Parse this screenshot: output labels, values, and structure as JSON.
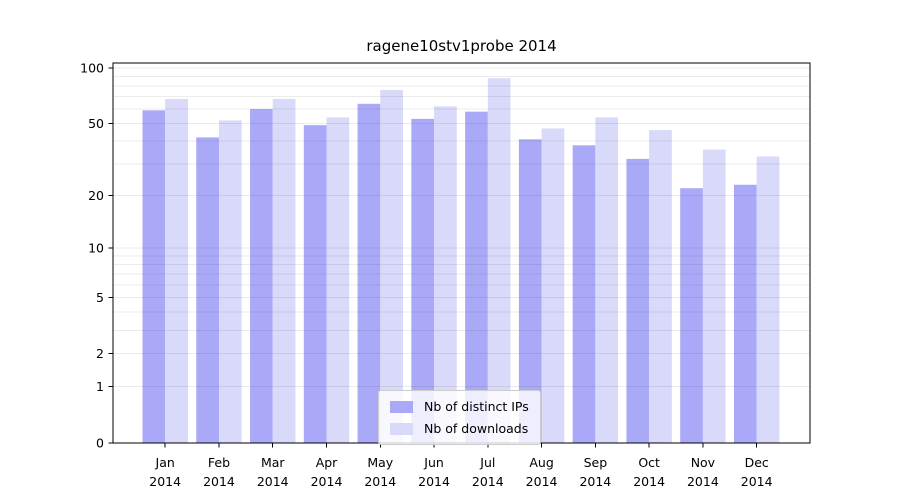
{
  "title": "ragene10stv1probe 2014",
  "chart_data": {
    "type": "bar",
    "title": "ragene10stv1probe 2014",
    "categories": [
      "Jan 2014",
      "Feb 2014",
      "Mar 2014",
      "Apr 2014",
      "May 2014",
      "Jun 2014",
      "Jul 2014",
      "Aug 2014",
      "Sep 2014",
      "Oct 2014",
      "Nov 2014",
      "Dec 2014"
    ],
    "series": [
      {
        "name": "Nb of distinct IPs",
        "color": "#a9a9f8",
        "values": [
          59,
          42,
          60,
          49,
          64,
          53,
          58,
          41,
          38,
          32,
          22,
          23
        ]
      },
      {
        "name": "Nb of downloads",
        "color": "#d9d9fa",
        "values": [
          68,
          52,
          68,
          54,
          76,
          62,
          88,
          47,
          54,
          46,
          36,
          33
        ]
      }
    ],
    "xlabel": "",
    "ylabel": "",
    "yscale": "log1p",
    "ylim": [
      0,
      106
    ],
    "y_tick_labels": [
      "100",
      "50",
      "20",
      "10",
      "5",
      "2",
      "1",
      "0"
    ],
    "y_tick_values": [
      100,
      50,
      20,
      10,
      5,
      2,
      1,
      0
    ],
    "y_gridlines": [
      1,
      2,
      3,
      4,
      5,
      6,
      7,
      8,
      9,
      10,
      20,
      30,
      40,
      50,
      60,
      70,
      80,
      90,
      100
    ],
    "grid": "on",
    "legend_position": "lower center",
    "colors": {
      "bar_dark": "#a9a9f8",
      "bar_light": "#d9d9fa",
      "gridline": "#e8e8e8",
      "axis": "#000000",
      "text": "#000000"
    }
  }
}
